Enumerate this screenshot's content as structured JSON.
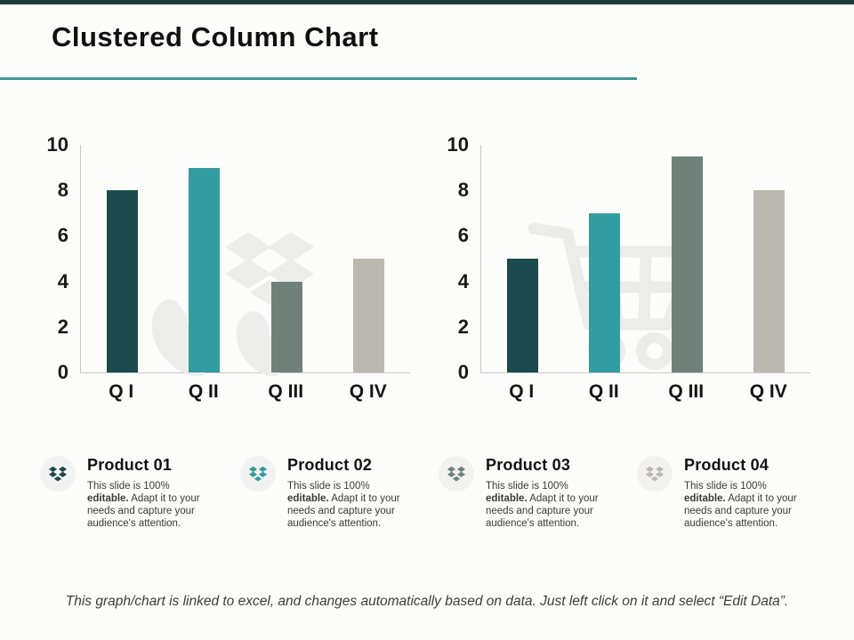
{
  "slide": {
    "title": "Clustered Column Chart",
    "footer": "This graph/chart is linked to excel, and changes automatically based on data. Just left click on it and select “Edit Data”.",
    "accent_bar_color": "#1d3c38",
    "title_underline_color": "#3d9798",
    "axis_line_color": "#c9c9c9"
  },
  "chart_data": [
    {
      "type": "bar",
      "title": "",
      "categories": [
        "Q I",
        "Q II",
        "Q III",
        "Q IV"
      ],
      "values": [
        8,
        9,
        4,
        5
      ],
      "ylim": [
        0,
        10
      ],
      "yticks": [
        0,
        2,
        4,
        6,
        8,
        10
      ],
      "bar_colors": [
        "#1b4a4d",
        "#319ca1",
        "#6f8279",
        "#bbb8af"
      ],
      "grid": false,
      "legend": "none",
      "watermark_icon": "dropbox-hand-icon"
    },
    {
      "type": "bar",
      "title": "",
      "categories": [
        "Q I",
        "Q II",
        "Q III",
        "Q IV"
      ],
      "values": [
        5,
        7,
        9.5,
        8
      ],
      "ylim": [
        0,
        10
      ],
      "yticks": [
        0,
        2,
        4,
        6,
        8,
        10
      ],
      "bar_colors": [
        "#1b4a4d",
        "#319ca1",
        "#6f8279",
        "#bbb8af"
      ],
      "grid": false,
      "legend": "none",
      "watermark_icon": "shopping-cart-icon"
    }
  ],
  "products": [
    {
      "name": "Product 01",
      "desc_pre": "This slide is 100% ",
      "desc_bold": "editable.",
      "desc_post": " Adapt it to your needs and capture your audience's attention.",
      "color": "#1b4a4d"
    },
    {
      "name": "Product 02",
      "desc_pre": "This slide is 100% ",
      "desc_bold": "editable.",
      "desc_post": " Adapt it to your needs and capture your audience's attention.",
      "color": "#319ca1"
    },
    {
      "name": "Product 03",
      "desc_pre": "This slide is 100% ",
      "desc_bold": "editable.",
      "desc_post": " Adapt it to your needs and capture your audience's attention.",
      "color": "#6f8279"
    },
    {
      "name": "Product 04",
      "desc_pre": "This slide is 100% ",
      "desc_bold": "editable.",
      "desc_post": " Adapt it to your needs and capture your audience's attention.",
      "color": "#bbb8af"
    }
  ]
}
